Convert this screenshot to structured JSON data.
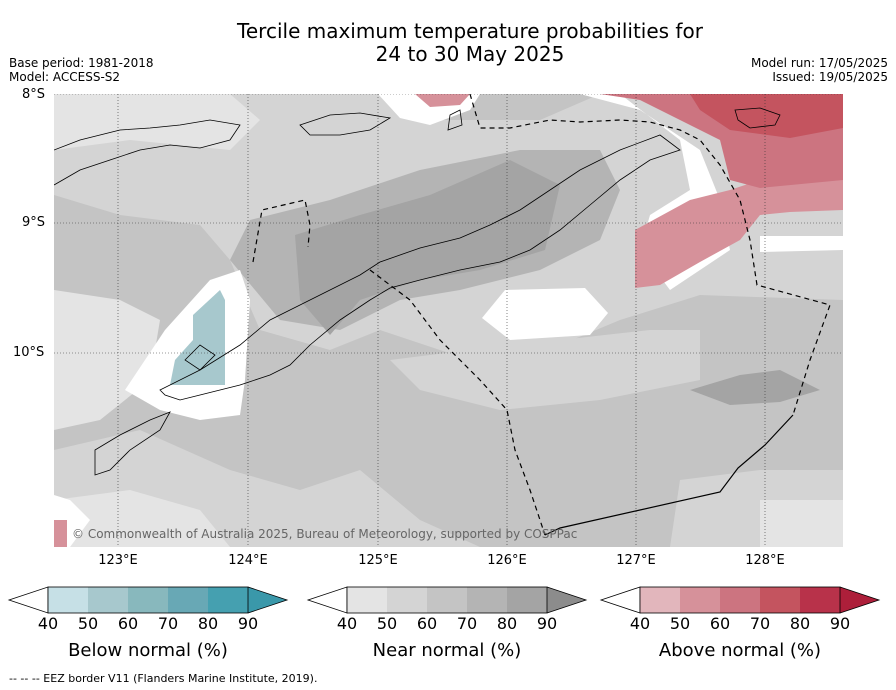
{
  "title_line1": "Tercile maximum temperature probabilities for",
  "title_line2": "24 to 30 May 2025",
  "base_period": "Base period: 1981-2018",
  "model": "Model: ACCESS-S2",
  "model_run": "Model run: 17/05/2025",
  "issued": "Issued: 19/05/2025",
  "lat_labels": [
    "8°S",
    "9°S",
    "10°S"
  ],
  "lon_labels": [
    "123°E",
    "124°E",
    "125°E",
    "126°E",
    "127°E",
    "128°E"
  ],
  "copyright": "© Commonwealth of Australia 2025, Bureau of Meteorology, supported by COSPPac",
  "colorbars": [
    {
      "label": "Below normal (%)",
      "ticks": [
        "40",
        "50",
        "60",
        "70",
        "80",
        "90"
      ],
      "colors": [
        "#c6e0e6",
        "#a7c8cd",
        "#88b8bd",
        "#68a8b5",
        "#45a0b0",
        "#3a98aa"
      ]
    },
    {
      "label": "Near normal (%)",
      "ticks": [
        "40",
        "50",
        "60",
        "70",
        "80",
        "90"
      ],
      "colors": [
        "#e4e4e4",
        "#d4d4d4",
        "#c4c4c4",
        "#b4b4b4",
        "#a4a4a4",
        "#8c8c8c"
      ]
    },
    {
      "label": "Above normal (%)",
      "ticks": [
        "40",
        "50",
        "60",
        "70",
        "80",
        "90"
      ],
      "colors": [
        "#e2b6bc",
        "#d6919a",
        "#cc7480",
        "#c4545f",
        "#b8324a",
        "#ad1f3a"
      ]
    }
  ],
  "footnote": "--  --  -- EEZ border V11 (Flanders Marine Institute, 2019)."
}
